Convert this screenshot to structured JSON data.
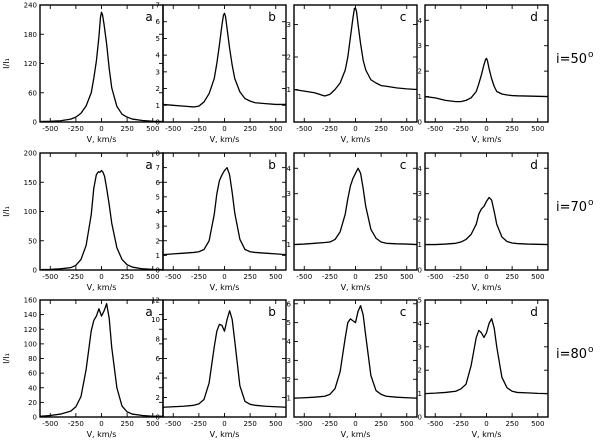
{
  "chart_data": [
    {
      "id": "r1a",
      "row": 0,
      "col": 0,
      "type": "line",
      "panel_label": "a",
      "xlabel": "V, km/s",
      "ylabel": "I/I₁",
      "xlim": [
        -600,
        600
      ],
      "ylim": [
        0,
        240
      ],
      "xticks": [
        -500,
        -250,
        0,
        250,
        500
      ],
      "yticks": [
        0,
        60,
        120,
        180,
        240
      ],
      "series": [
        {
          "x": [
            -600,
            -500,
            -400,
            -300,
            -250,
            -200,
            -150,
            -100,
            -75,
            -50,
            -25,
            -10,
            0,
            10,
            25,
            50,
            75,
            100,
            150,
            200,
            250,
            300,
            400,
            500,
            600
          ],
          "y": [
            1,
            1.5,
            2.5,
            6,
            10,
            18,
            33,
            60,
            90,
            125,
            175,
            215,
            225,
            220,
            200,
            160,
            110,
            70,
            32,
            16,
            10,
            6,
            3,
            1.5,
            1
          ]
        }
      ]
    },
    {
      "id": "r1b",
      "row": 0,
      "col": 1,
      "type": "line",
      "panel_label": "b",
      "xlabel": "V, km/s",
      "ylabel": "",
      "xlim": [
        -600,
        600
      ],
      "ylim": [
        0,
        7
      ],
      "xticks": [
        -500,
        -250,
        0,
        250,
        500
      ],
      "yticks": [
        0,
        1,
        2,
        3,
        4,
        5,
        6,
        7
      ],
      "series": [
        {
          "x": [
            -600,
            -500,
            -400,
            -300,
            -250,
            -200,
            -150,
            -100,
            -75,
            -50,
            -25,
            -10,
            0,
            10,
            25,
            50,
            75,
            100,
            150,
            200,
            250,
            300,
            400,
            500,
            600
          ],
          "y": [
            1.05,
            1,
            0.95,
            0.9,
            0.95,
            1.2,
            1.7,
            2.6,
            3.5,
            4.6,
            5.8,
            6.4,
            6.5,
            6.3,
            5.6,
            4.4,
            3.4,
            2.6,
            1.8,
            1.4,
            1.25,
            1.15,
            1.1,
            1.05,
            1.05
          ]
        }
      ]
    },
    {
      "id": "r1c",
      "row": 0,
      "col": 2,
      "type": "line",
      "panel_label": "c",
      "xlabel": "V, km/s",
      "ylabel": "",
      "xlim": [
        -600,
        600
      ],
      "ylim": [
        0,
        3.6
      ],
      "xticks": [
        -500,
        -250,
        0,
        250,
        500
      ],
      "yticks": [
        1,
        2,
        3
      ],
      "series": [
        {
          "x": [
            -600,
            -500,
            -400,
            -300,
            -250,
            -200,
            -150,
            -100,
            -75,
            -50,
            -25,
            -10,
            0,
            10,
            25,
            50,
            75,
            100,
            150,
            200,
            250,
            300,
            400,
            500,
            600
          ],
          "y": [
            1.0,
            0.95,
            0.9,
            0.8,
            0.85,
            1.0,
            1.2,
            1.6,
            2.0,
            2.6,
            3.2,
            3.5,
            3.5,
            3.4,
            3.0,
            2.4,
            1.9,
            1.6,
            1.3,
            1.2,
            1.12,
            1.1,
            1.05,
            1.02,
            1.0
          ]
        }
      ]
    },
    {
      "id": "r1d",
      "row": 0,
      "col": 3,
      "type": "line",
      "panel_label": "d",
      "xlabel": "V, km/s",
      "ylabel": "",
      "xlim": [
        -600,
        600
      ],
      "ylim": [
        0,
        4.6
      ],
      "xticks": [
        -500,
        -250,
        0,
        250,
        500
      ],
      "yticks": [
        0,
        1,
        2,
        3,
        4
      ],
      "series": [
        {
          "x": [
            -600,
            -500,
            -400,
            -300,
            -250,
            -200,
            -150,
            -100,
            -75,
            -50,
            -25,
            -10,
            0,
            10,
            25,
            50,
            75,
            100,
            150,
            200,
            250,
            300,
            400,
            500,
            600
          ],
          "y": [
            1.0,
            0.95,
            0.85,
            0.8,
            0.8,
            0.85,
            0.95,
            1.2,
            1.5,
            1.85,
            2.25,
            2.45,
            2.5,
            2.4,
            2.1,
            1.7,
            1.4,
            1.2,
            1.1,
            1.06,
            1.04,
            1.03,
            1.02,
            1.01,
            1.0
          ]
        }
      ]
    },
    {
      "id": "r2a",
      "row": 1,
      "col": 0,
      "type": "line",
      "panel_label": "a",
      "xlabel": "V, km/s",
      "ylabel": "I/I₁",
      "xlim": [
        -600,
        600
      ],
      "ylim": [
        0,
        200
      ],
      "xticks": [
        -500,
        -250,
        0,
        250,
        500
      ],
      "yticks": [
        0,
        50,
        100,
        150,
        200
      ],
      "series": [
        {
          "x": [
            -600,
            -500,
            -400,
            -300,
            -250,
            -200,
            -150,
            -100,
            -75,
            -50,
            -30,
            -15,
            0,
            15,
            30,
            50,
            75,
            100,
            150,
            200,
            250,
            300,
            400,
            500,
            600
          ],
          "y": [
            0.5,
            1,
            2,
            4,
            8,
            18,
            42,
            95,
            140,
            163,
            168,
            167,
            170,
            167,
            160,
            140,
            112,
            80,
            38,
            18,
            9,
            5,
            2,
            1,
            0.5
          ]
        }
      ]
    },
    {
      "id": "r2b",
      "row": 1,
      "col": 1,
      "type": "line",
      "panel_label": "b",
      "xlabel": "V, km/s",
      "ylabel": "",
      "xlim": [
        -600,
        600
      ],
      "ylim": [
        0,
        8
      ],
      "xticks": [
        -500,
        -250,
        0,
        250,
        500
      ],
      "yticks": [
        0,
        1,
        2,
        3,
        4,
        5,
        6,
        7,
        8
      ],
      "series": [
        {
          "x": [
            -600,
            -500,
            -400,
            -300,
            -250,
            -200,
            -150,
            -100,
            -75,
            -50,
            -25,
            0,
            25,
            50,
            75,
            100,
            150,
            200,
            250,
            300,
            400,
            500,
            600
          ],
          "y": [
            1.05,
            1.1,
            1.15,
            1.2,
            1.25,
            1.4,
            2.0,
            3.8,
            5.2,
            6.1,
            6.5,
            6.8,
            7.0,
            6.5,
            5.3,
            3.9,
            2.1,
            1.4,
            1.25,
            1.2,
            1.15,
            1.1,
            1.05
          ]
        }
      ]
    },
    {
      "id": "r2c",
      "row": 1,
      "col": 2,
      "type": "line",
      "panel_label": "c",
      "xlabel": "V, km/s",
      "ylabel": "",
      "xlim": [
        -600,
        600
      ],
      "ylim": [
        0,
        4.6
      ],
      "xticks": [
        -500,
        -250,
        0,
        250,
        500
      ],
      "yticks": [
        1,
        2,
        3,
        4
      ],
      "series": [
        {
          "x": [
            -600,
            -500,
            -400,
            -300,
            -250,
            -200,
            -150,
            -100,
            -75,
            -50,
            -25,
            0,
            25,
            50,
            75,
            100,
            150,
            200,
            250,
            300,
            400,
            500,
            600
          ],
          "y": [
            1.0,
            1.02,
            1.05,
            1.08,
            1.1,
            1.2,
            1.5,
            2.2,
            2.8,
            3.3,
            3.6,
            3.8,
            4.0,
            3.8,
            3.2,
            2.5,
            1.6,
            1.25,
            1.1,
            1.05,
            1.03,
            1.02,
            1.0
          ]
        }
      ]
    },
    {
      "id": "r2d",
      "row": 1,
      "col": 3,
      "type": "line",
      "panel_label": "d",
      "xlabel": "V, km/s",
      "ylabel": "",
      "xlim": [
        -600,
        600
      ],
      "ylim": [
        0,
        4.6
      ],
      "xticks": [
        -500,
        -250,
        0,
        250,
        500
      ],
      "yticks": [
        0,
        1,
        2,
        3,
        4
      ],
      "series": [
        {
          "x": [
            -600,
            -500,
            -400,
            -300,
            -250,
            -200,
            -150,
            -100,
            -75,
            -50,
            -25,
            0,
            25,
            50,
            75,
            100,
            150,
            200,
            250,
            300,
            400,
            500,
            600
          ],
          "y": [
            1.0,
            1.0,
            1.02,
            1.05,
            1.1,
            1.2,
            1.4,
            1.8,
            2.2,
            2.4,
            2.5,
            2.7,
            2.85,
            2.75,
            2.3,
            1.8,
            1.3,
            1.12,
            1.06,
            1.04,
            1.02,
            1.01,
            1.0
          ]
        }
      ]
    },
    {
      "id": "r3a",
      "row": 2,
      "col": 0,
      "type": "line",
      "panel_label": "a",
      "xlabel": "V, km/s",
      "ylabel": "I/I₁",
      "xlim": [
        -600,
        600
      ],
      "ylim": [
        0,
        160
      ],
      "xticks": [
        -500,
        -250,
        0,
        250,
        500
      ],
      "yticks": [
        0,
        20,
        40,
        60,
        80,
        100,
        120,
        140,
        160
      ],
      "series": [
        {
          "x": [
            -600,
            -500,
            -400,
            -300,
            -250,
            -200,
            -150,
            -100,
            -75,
            -50,
            -25,
            0,
            25,
            50,
            75,
            100,
            150,
            200,
            250,
            300,
            400,
            500,
            600
          ],
          "y": [
            1,
            2,
            4,
            8,
            14,
            28,
            65,
            118,
            132,
            138,
            148,
            138,
            145,
            155,
            135,
            95,
            40,
            15,
            7,
            4,
            2,
            1,
            1
          ]
        }
      ]
    },
    {
      "id": "r3b",
      "row": 2,
      "col": 1,
      "type": "line",
      "panel_label": "b",
      "xlabel": "V, km/s",
      "ylabel": "",
      "xlim": [
        -600,
        600
      ],
      "ylim": [
        0,
        12
      ],
      "xticks": [
        -500,
        -250,
        0,
        250,
        500
      ],
      "yticks": [
        0,
        2,
        4,
        6,
        8,
        10,
        12
      ],
      "series": [
        {
          "x": [
            -600,
            -500,
            -400,
            -300,
            -250,
            -200,
            -150,
            -100,
            -75,
            -50,
            -25,
            0,
            25,
            50,
            75,
            100,
            150,
            200,
            250,
            300,
            400,
            500,
            600
          ],
          "y": [
            1.0,
            1.05,
            1.1,
            1.2,
            1.35,
            1.8,
            3.5,
            7.2,
            8.8,
            9.5,
            9.4,
            8.8,
            10.0,
            10.9,
            10.0,
            7.8,
            3.2,
            1.6,
            1.3,
            1.2,
            1.1,
            1.05,
            1.0
          ]
        }
      ]
    },
    {
      "id": "r3c",
      "row": 2,
      "col": 2,
      "type": "line",
      "panel_label": "c",
      "xlabel": "V, km/s",
      "ylabel": "",
      "xlim": [
        -600,
        600
      ],
      "ylim": [
        0,
        6.2
      ],
      "xticks": [
        -500,
        -250,
        0,
        250,
        500
      ],
      "yticks": [
        1,
        2,
        3,
        4,
        5,
        6
      ],
      "series": [
        {
          "x": [
            -600,
            -500,
            -400,
            -300,
            -250,
            -200,
            -150,
            -100,
            -75,
            -50,
            -25,
            0,
            25,
            50,
            75,
            100,
            150,
            200,
            250,
            300,
            400,
            500,
            600
          ],
          "y": [
            1.0,
            1.02,
            1.05,
            1.1,
            1.2,
            1.5,
            2.4,
            4.2,
            5.0,
            5.2,
            5.1,
            5.0,
            5.6,
            5.9,
            5.4,
            4.3,
            2.2,
            1.4,
            1.2,
            1.1,
            1.05,
            1.02,
            1.0
          ]
        }
      ]
    },
    {
      "id": "r3d",
      "row": 2,
      "col": 3,
      "type": "line",
      "panel_label": "d",
      "xlabel": "V, km/s",
      "ylabel": "",
      "xlim": [
        -600,
        600
      ],
      "ylim": [
        0,
        5
      ],
      "xticks": [
        -500,
        -250,
        0,
        250,
        500
      ],
      "yticks": [
        0,
        1,
        2,
        3,
        4,
        5
      ],
      "series": [
        {
          "x": [
            -600,
            -500,
            -400,
            -300,
            -250,
            -200,
            -150,
            -100,
            -75,
            -50,
            -25,
            0,
            25,
            50,
            75,
            100,
            150,
            200,
            250,
            300,
            400,
            500,
            600
          ],
          "y": [
            1.0,
            1.02,
            1.05,
            1.1,
            1.2,
            1.4,
            2.2,
            3.4,
            3.7,
            3.6,
            3.4,
            3.6,
            4.0,
            4.2,
            3.8,
            3.0,
            1.7,
            1.25,
            1.1,
            1.05,
            1.03,
            1.01,
            1.0
          ]
        }
      ]
    }
  ],
  "row_labels": [
    {
      "prefix": "i=50",
      "sup": "o"
    },
    {
      "prefix": "i=70",
      "sup": "o"
    },
    {
      "prefix": "i=80",
      "sup": "o"
    }
  ]
}
